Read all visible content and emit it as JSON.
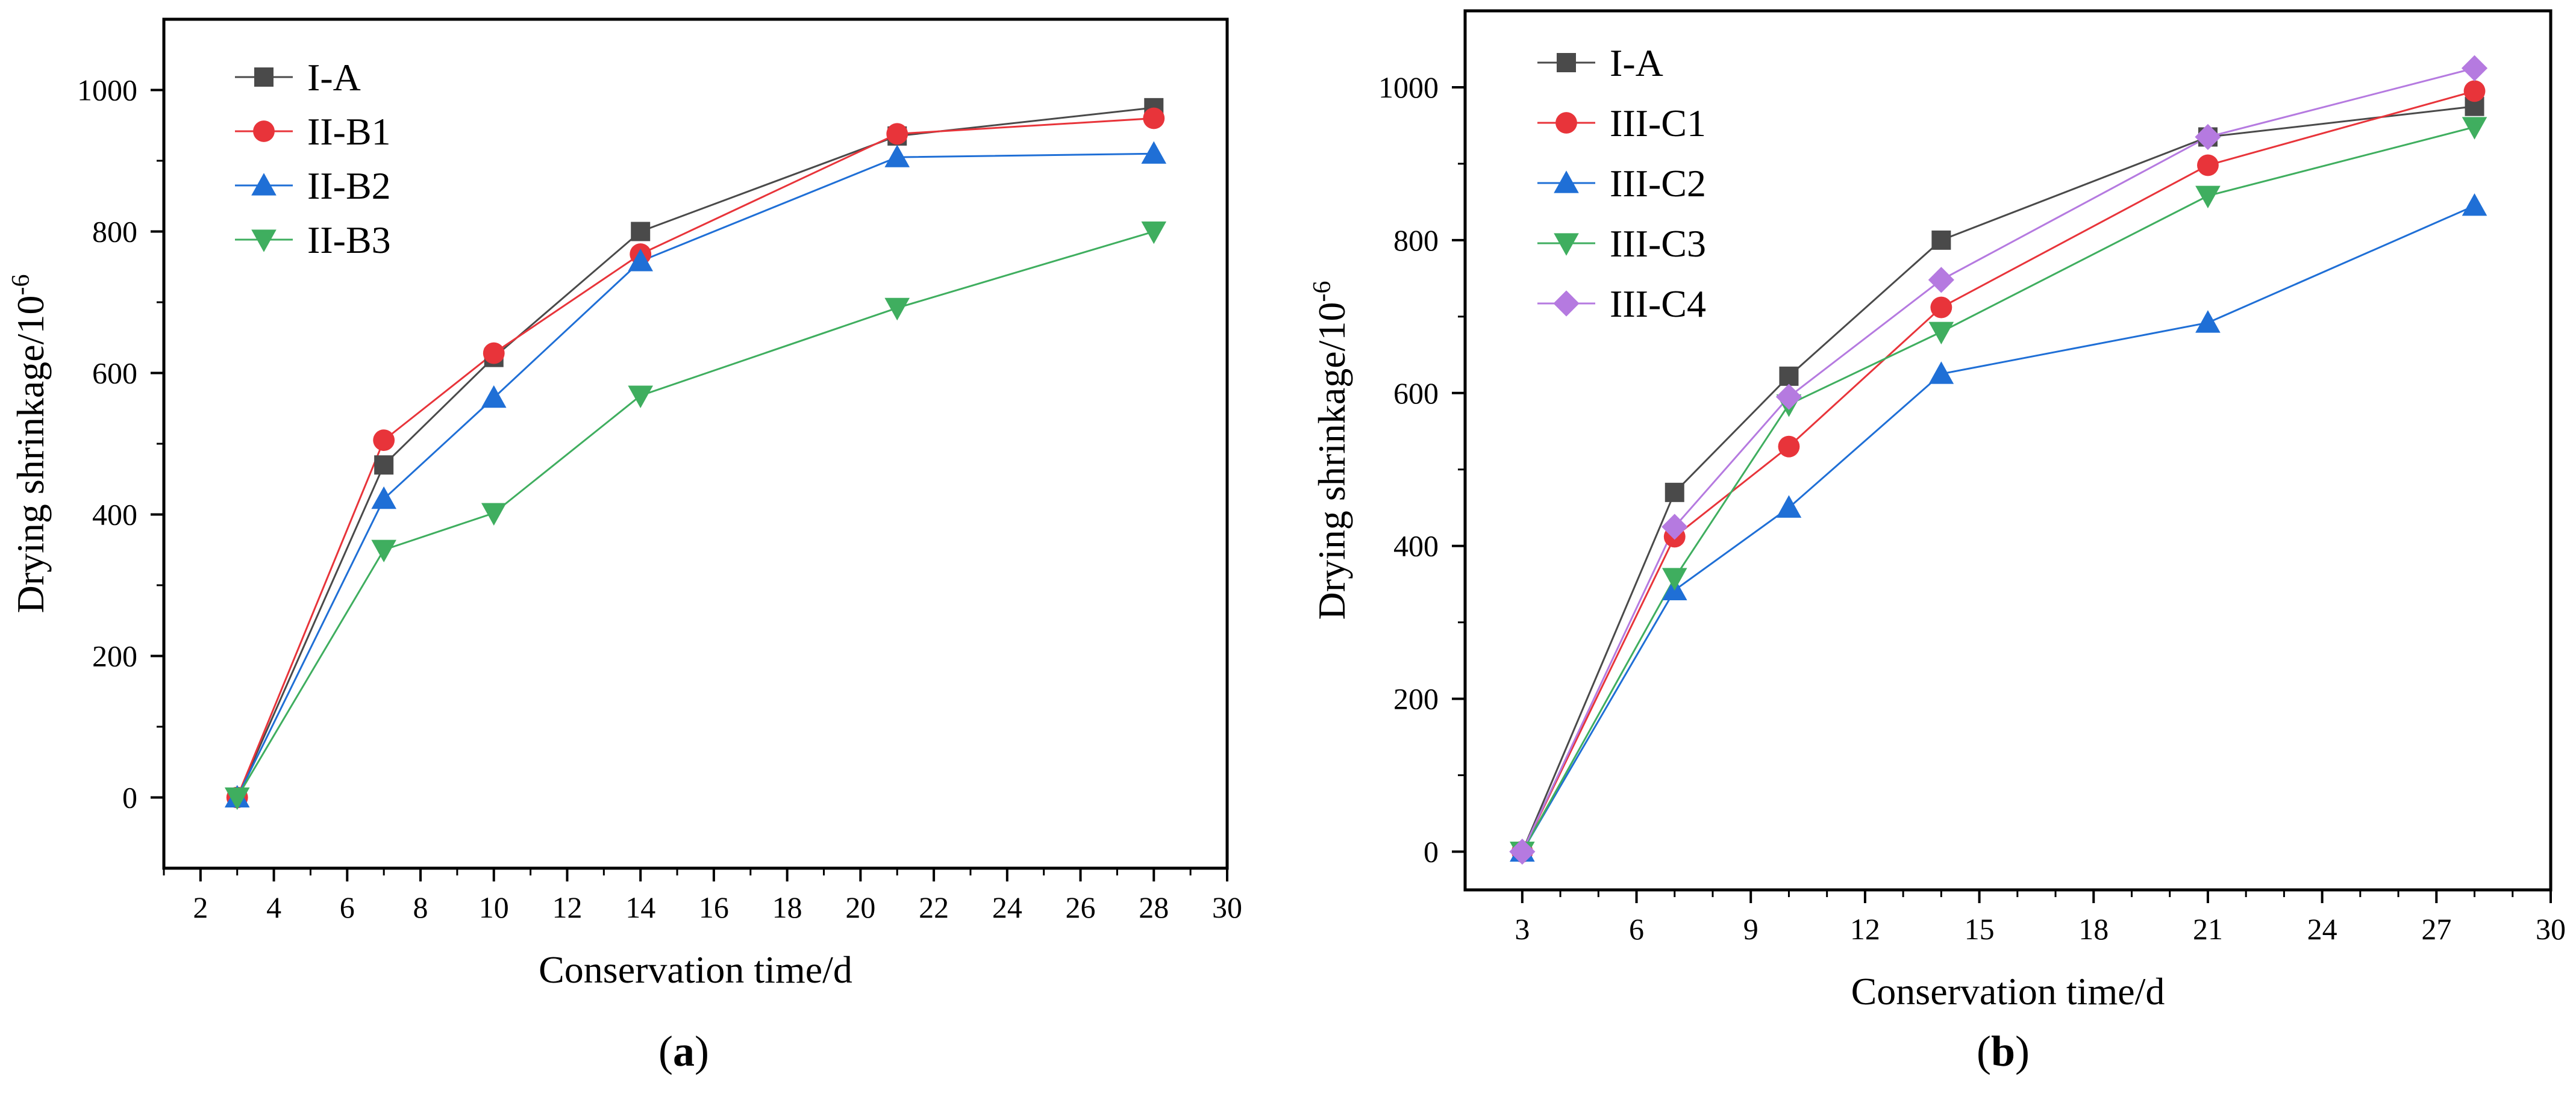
{
  "figure": {
    "panels": [
      "(a)",
      "(b)"
    ]
  },
  "chart_data": [
    {
      "type": "line",
      "panel_label": "(a)",
      "xlabel": "Conservation time/d",
      "ylabel": "Drying shrinkage/10",
      "ylabel_superscript": "-6",
      "xlim": [
        1,
        30
      ],
      "ylim": [
        -100,
        1100
      ],
      "x_ticks": [
        2,
        4,
        6,
        8,
        10,
        12,
        14,
        16,
        18,
        20,
        22,
        24,
        26,
        28,
        30
      ],
      "y_ticks": [
        0,
        200,
        400,
        600,
        800,
        1000
      ],
      "x_tick_labels": [
        "2",
        "4",
        "6",
        "8",
        "10",
        "12",
        "14",
        "16",
        "18",
        "20",
        "22",
        "24",
        "26",
        "28",
        "30"
      ],
      "y_tick_labels": [
        "0",
        "200",
        "400",
        "600",
        "800",
        "1000"
      ],
      "legend_position": "top-left",
      "x": [
        3,
        7,
        10,
        14,
        21,
        28
      ],
      "series": [
        {
          "name": "I-A",
          "values": [
            0,
            470,
            622,
            800,
            935,
            975
          ],
          "color": "#4a4a4a",
          "marker": "square"
        },
        {
          "name": "II-B1",
          "values": [
            0,
            505,
            628,
            768,
            938,
            960
          ],
          "color": "#e8343a",
          "marker": "circle"
        },
        {
          "name": "II-B2",
          "values": [
            0,
            422,
            565,
            758,
            905,
            910
          ],
          "color": "#1f6fd6",
          "marker": "triangle-up"
        },
        {
          "name": "II-B3",
          "values": [
            0,
            350,
            402,
            568,
            692,
            800
          ],
          "color": "#3fae5f",
          "marker": "triangle-down"
        }
      ]
    },
    {
      "type": "line",
      "panel_label": "(b)",
      "xlabel": "Conservation time/d",
      "ylabel": "Drying shrinkage/10",
      "ylabel_superscript": "-6",
      "xlim": [
        1.5,
        30
      ],
      "ylim": [
        -50,
        1100
      ],
      "x_ticks": [
        3,
        6,
        9,
        12,
        15,
        18,
        21,
        24,
        27,
        30
      ],
      "y_ticks": [
        0,
        200,
        400,
        600,
        800,
        1000
      ],
      "x_tick_labels": [
        "3",
        "6",
        "9",
        "12",
        "15",
        "18",
        "21",
        "24",
        "27",
        "30"
      ],
      "y_tick_labels": [
        "0",
        "200",
        "400",
        "600",
        "800",
        "1000"
      ],
      "legend_position": "top-left",
      "x": [
        3,
        7,
        10,
        14,
        21,
        28
      ],
      "series": [
        {
          "name": "I-A",
          "values": [
            0,
            470,
            622,
            800,
            935,
            975
          ],
          "color": "#4a4a4a",
          "marker": "square"
        },
        {
          "name": "III-C1",
          "values": [
            0,
            412,
            530,
            712,
            898,
            995
          ],
          "color": "#e8343a",
          "marker": "circle"
        },
        {
          "name": "III-C2",
          "values": [
            0,
            342,
            450,
            625,
            692,
            845
          ],
          "color": "#1f6fd6",
          "marker": "triangle-up"
        },
        {
          "name": "III-C3",
          "values": [
            0,
            358,
            585,
            680,
            858,
            948
          ],
          "color": "#3fae5f",
          "marker": "triangle-down"
        },
        {
          "name": "III-C4",
          "values": [
            0,
            425,
            595,
            748,
            935,
            1025
          ],
          "color": "#b57ae0",
          "marker": "diamond"
        }
      ]
    }
  ]
}
